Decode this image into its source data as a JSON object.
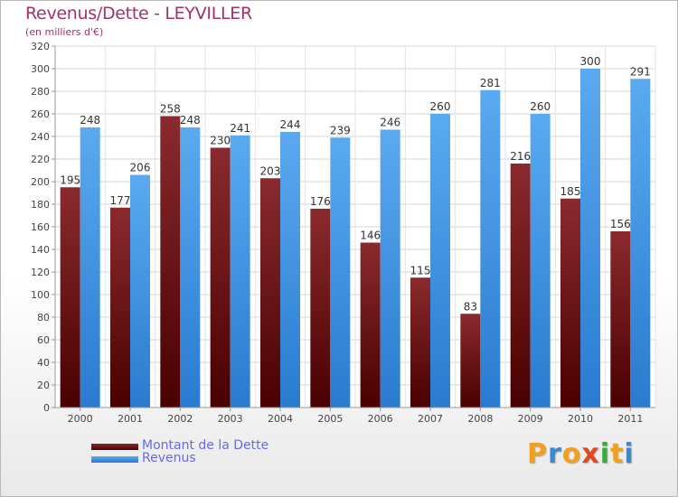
{
  "header": {
    "title": "Revenus/Dette - LEYVILLER",
    "subtitle": "(en milliers d'€)"
  },
  "chart_data": {
    "type": "bar",
    "title": "Revenus/Dette - LEYVILLER",
    "subtitle": "(en milliers d'€)",
    "categories": [
      "2000",
      "2001",
      "2002",
      "2003",
      "2004",
      "2005",
      "2006",
      "2007",
      "2008",
      "2009",
      "2010",
      "2011"
    ],
    "series": [
      {
        "name": "Montant de la Dette",
        "values": [
          195,
          177,
          258,
          230,
          203,
          176,
          146,
          115,
          83,
          216,
          185,
          156
        ]
      },
      {
        "name": "Revenus",
        "values": [
          248,
          206,
          248,
          241,
          244,
          239,
          246,
          260,
          281,
          260,
          300,
          291
        ]
      }
    ],
    "xlabel": "",
    "ylabel": "",
    "ylim": [
      0,
      320
    ],
    "yticks": [
      0,
      20,
      40,
      60,
      80,
      100,
      120,
      140,
      160,
      180,
      200,
      220,
      240,
      260,
      280,
      300,
      320
    ],
    "grid": true,
    "legend": "bottom-left",
    "colors": {
      "dette_top": "#8a2a2e",
      "dette_bottom": "#4a0000",
      "revenus_top": "#5aaaf0",
      "revenus_bottom": "#2a7ad0"
    }
  },
  "legend": {
    "dette_label": "Montant de la Dette",
    "revenus_label": "Revenus"
  },
  "brand": {
    "letters": [
      "P",
      "r",
      "o",
      "x",
      "i",
      "t",
      "i"
    ],
    "colors": [
      "#f0a020",
      "#3a8ad0",
      "#f0a020",
      "#e04a20",
      "#3aaa3a",
      "#f0a020",
      "#3a8ad0"
    ]
  }
}
